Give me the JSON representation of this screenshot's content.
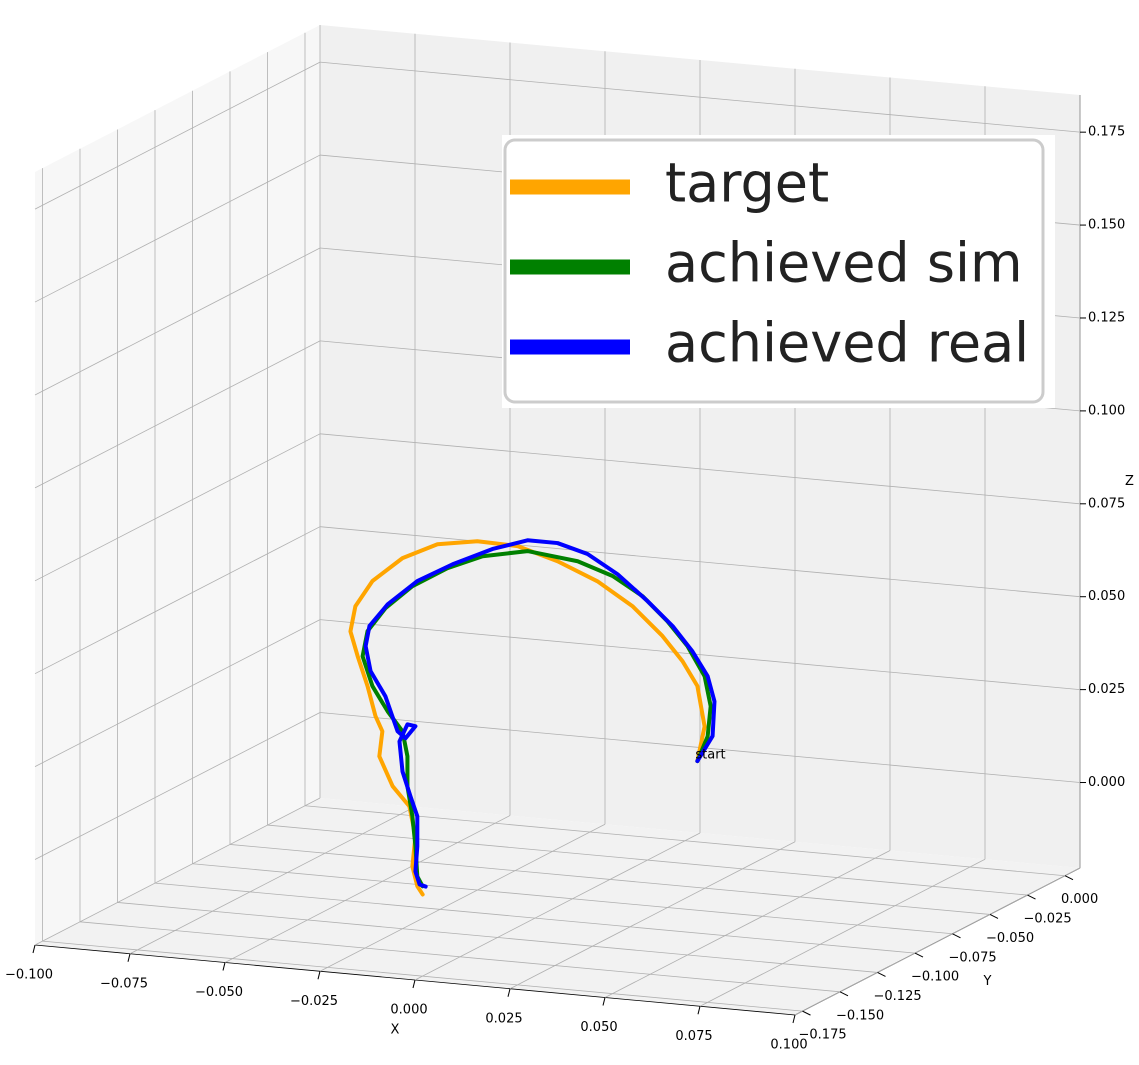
{
  "chart_data": {
    "type": "line3d",
    "xlabel": "X",
    "ylabel": "Y",
    "zlabel": "Z",
    "xlim": [
      -0.1,
      0.1
    ],
    "ylim": [
      -0.18,
      0.01
    ],
    "zlim": [
      -0.023,
      0.185
    ],
    "xticks": [
      {
        "value": -0.1,
        "label": "−0.100"
      },
      {
        "value": -0.075,
        "label": "−0.075"
      },
      {
        "value": -0.05,
        "label": "−0.050"
      },
      {
        "value": -0.025,
        "label": "−0.025"
      },
      {
        "value": 0,
        "label": "0.000"
      },
      {
        "value": 0.025,
        "label": "0.025"
      },
      {
        "value": 0.05,
        "label": "0.050"
      },
      {
        "value": 0.075,
        "label": "0.075"
      },
      {
        "value": 0.1,
        "label": "0.100"
      }
    ],
    "yticks": [
      {
        "value": -0.175,
        "label": "−0.175"
      },
      {
        "value": -0.15,
        "label": "−0.150"
      },
      {
        "value": -0.125,
        "label": "−0.125"
      },
      {
        "value": -0.1,
        "label": "−0.100"
      },
      {
        "value": -0.075,
        "label": "−0.075"
      },
      {
        "value": -0.05,
        "label": "−0.050"
      },
      {
        "value": -0.025,
        "label": "−0.025"
      },
      {
        "value": 0,
        "label": "0.000"
      }
    ],
    "zticks": [
      {
        "value": 0,
        "label": "0.000"
      },
      {
        "value": 0.025,
        "label": "0.025"
      },
      {
        "value": 0.05,
        "label": "0.050"
      },
      {
        "value": 0.075,
        "label": "0.075"
      },
      {
        "value": 0.1,
        "label": "0.100"
      },
      {
        "value": 0.125,
        "label": "0.125"
      },
      {
        "value": 0.15,
        "label": "0.150"
      },
      {
        "value": 0.175,
        "label": "0.175"
      }
    ],
    "grid": true,
    "legend": "upper right",
    "annotation": {
      "text": "start",
      "x": 0.0151,
      "y": -0.03,
      "z": 0.0061
    },
    "series": [
      {
        "name": "target",
        "color": "#ffa500",
        "x": [
          0.0151,
          0.017,
          0.0151,
          0.0112,
          0.0059,
          -0.002,
          -0.0112,
          -0.0217,
          -0.0322,
          -0.0428,
          -0.0533,
          -0.0625,
          -0.0704,
          -0.0749,
          -0.0762,
          -0.0743,
          -0.0717,
          -0.0696,
          -0.0678,
          -0.0686,
          -0.0651,
          -0.0607,
          -0.0591,
          -0.0599,
          -0.0586,
          -0.0572
        ],
        "y": [
          -0.03,
          -0.03,
          -0.03,
          -0.03,
          -0.03,
          -0.03,
          -0.03,
          -0.03,
          -0.03,
          -0.03,
          -0.03,
          -0.03,
          -0.03,
          -0.03,
          -0.03,
          -0.03,
          -0.03,
          -0.03,
          -0.03,
          -0.03,
          -0.03,
          -0.03,
          -0.03,
          -0.03,
          -0.03,
          -0.03
        ],
        "z": [
          0.0061,
          0.0156,
          0.0263,
          0.0326,
          0.0389,
          0.0462,
          0.052,
          0.0564,
          0.0595,
          0.0598,
          0.058,
          0.0534,
          0.0465,
          0.0393,
          0.0324,
          0.0259,
          0.0181,
          0.0102,
          0.0063,
          -0.0005,
          -0.0082,
          -0.0132,
          -0.0211,
          -0.0293,
          -0.0345,
          -0.0366
        ]
      },
      {
        "name": "achieved sim",
        "color": "#008000",
        "x": [
          0.0151,
          0.0178,
          0.0186,
          0.017,
          0.0125,
          0.0072,
          0.0007,
          -0.0072,
          -0.0164,
          -0.0296,
          -0.0414,
          -0.0507,
          -0.0599,
          -0.067,
          -0.0717,
          -0.073,
          -0.0704,
          -0.0664,
          -0.0625,
          -0.0612,
          -0.0612,
          -0.0599,
          -0.0591,
          -0.0586,
          -0.0572
        ],
        "y": [
          -0.03,
          -0.03,
          -0.03,
          -0.03,
          -0.03,
          -0.03,
          -0.03,
          -0.03,
          -0.03,
          -0.03,
          -0.03,
          -0.03,
          -0.03,
          -0.03,
          -0.03,
          -0.03,
          -0.03,
          -0.03,
          -0.03,
          -0.03,
          -0.03,
          -0.03,
          -0.03,
          -0.03,
          -0.03
        ],
        "z": [
          0.0061,
          0.013,
          0.0212,
          0.0291,
          0.0368,
          0.043,
          0.0491,
          0.0538,
          0.0569,
          0.0584,
          0.0559,
          0.0518,
          0.0461,
          0.0395,
          0.0329,
          0.026,
          0.0182,
          0.0118,
          0.0068,
          0.0002,
          -0.0079,
          -0.0158,
          -0.0238,
          -0.0319,
          -0.0344
        ]
      },
      {
        "name": "achieved real",
        "color": "#0000ff",
        "x": [
          0.0151,
          0.0191,
          0.0196,
          0.0178,
          0.0138,
          0.0086,
          0.002,
          -0.0059,
          -0.0138,
          -0.0217,
          -0.0296,
          -0.0388,
          -0.0493,
          -0.0586,
          -0.0664,
          -0.0712,
          -0.0722,
          -0.0709,
          -0.067,
          -0.0638,
          -0.0617,
          -0.0591,
          -0.0612,
          -0.0633,
          -0.0625,
          -0.0604,
          -0.0586,
          -0.0586,
          -0.0591,
          -0.058,
          -0.0564
        ],
        "y": [
          -0.03,
          -0.03,
          -0.03,
          -0.03,
          -0.03,
          -0.03,
          -0.03,
          -0.03,
          -0.03,
          -0.03,
          -0.03,
          -0.03,
          -0.03,
          -0.03,
          -0.03,
          -0.03,
          -0.03,
          -0.03,
          -0.03,
          -0.03,
          -0.03,
          -0.03,
          -0.03,
          -0.03,
          -0.03,
          -0.03,
          -0.03,
          -0.03,
          -0.03,
          -0.03,
          -0.03
        ],
        "z": [
          0.0061,
          0.0132,
          0.0226,
          0.0292,
          0.0355,
          0.0418,
          0.0479,
          0.0544,
          0.0591,
          0.0613,
          0.0613,
          0.0581,
          0.053,
          0.0476,
          0.0406,
          0.0343,
          0.0288,
          0.0222,
          0.0158,
          0.0067,
          0.005,
          0.0085,
          0.0088,
          0.004,
          -0.004,
          -0.0105,
          -0.0157,
          -0.0238,
          -0.0306,
          -0.034,
          -0.0344
        ]
      }
    ]
  }
}
